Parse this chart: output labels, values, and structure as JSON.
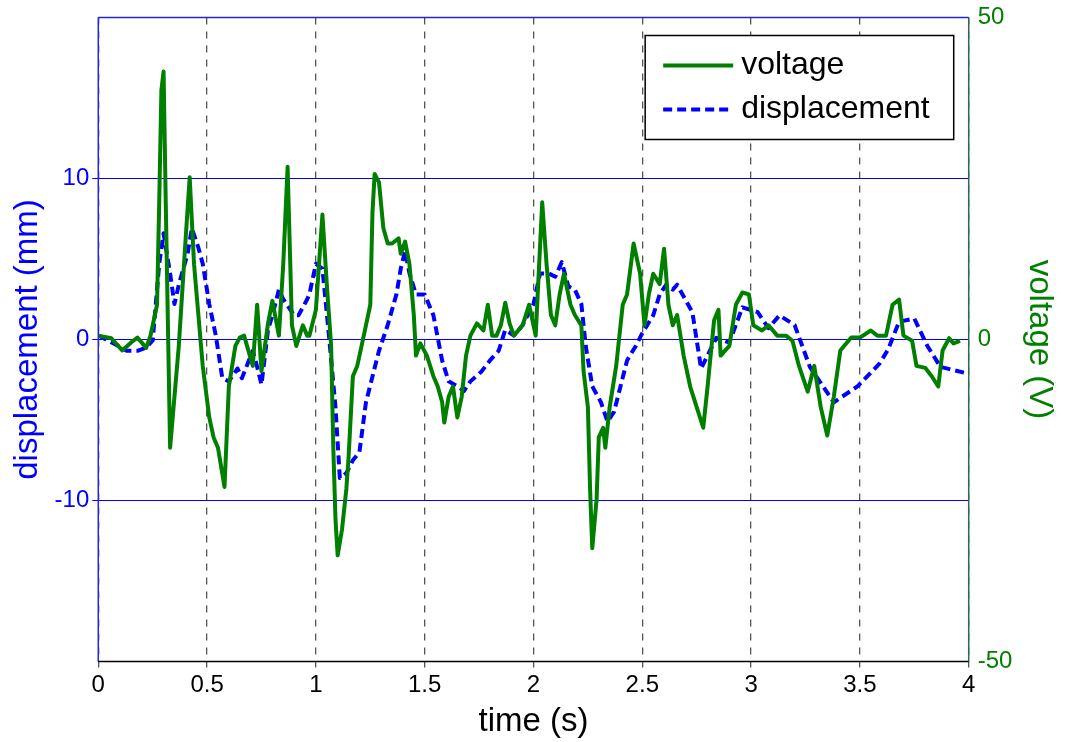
{
  "chart_data": {
    "type": "line",
    "xlabel": "time (s)",
    "ylabel": "displacement (mm)",
    "y2label": "voltage (V)",
    "xlim": [
      0,
      4
    ],
    "xticks": [
      0,
      0.5,
      1,
      1.5,
      2,
      2.5,
      3,
      3.5,
      4
    ],
    "ylim": [
      -20,
      20
    ],
    "yticks": [
      -10,
      0,
      10
    ],
    "y2lim": [
      -50,
      50
    ],
    "y2ticks": [
      -50,
      0,
      50
    ],
    "grid": true,
    "legend": "top right",
    "marker": "none",
    "series": [
      {
        "name": "voltage",
        "color": "#007f00",
        "axis": "y2",
        "line_style": "solid",
        "x": [
          0,
          0.06,
          0.11,
          0.16,
          0.18,
          0.22,
          0.24,
          0.27,
          0.28,
          0.29,
          0.3,
          0.31,
          0.33,
          0.37,
          0.4,
          0.42,
          0.44,
          0.48,
          0.51,
          0.53,
          0.55,
          0.58,
          0.6,
          0.63,
          0.65,
          0.67,
          0.71,
          0.73,
          0.75,
          0.78,
          0.8,
          0.83,
          0.85,
          0.87,
          0.89,
          0.91,
          0.94,
          0.96,
          0.97,
          1.0,
          1.03,
          1.05,
          1.07,
          1.08,
          1.09,
          1.1,
          1.12,
          1.14,
          1.15,
          1.17,
          1.19,
          1.21,
          1.23,
          1.25,
          1.26,
          1.27,
          1.29,
          1.31,
          1.33,
          1.35,
          1.38,
          1.39,
          1.41,
          1.43,
          1.45,
          1.46,
          1.48,
          1.51,
          1.54,
          1.56,
          1.58,
          1.59,
          1.61,
          1.63,
          1.65,
          1.67,
          1.69,
          1.71,
          1.74,
          1.77,
          1.79,
          1.81,
          1.83,
          1.85,
          1.87,
          1.89,
          1.91,
          1.95,
          1.98,
          2.01,
          2.04,
          2.06,
          2.08,
          2.1,
          2.12,
          2.14,
          2.17,
          2.19,
          2.22,
          2.23,
          2.25,
          2.26,
          2.27,
          2.29,
          2.3,
          2.32,
          2.33,
          2.35,
          2.38,
          2.41,
          2.43,
          2.46,
          2.49,
          2.51,
          2.53,
          2.55,
          2.58,
          2.6,
          2.62,
          2.64,
          2.66,
          2.69,
          2.72,
          2.75,
          2.78,
          2.8,
          2.83,
          2.85,
          2.86,
          2.9,
          2.93,
          2.96,
          2.99,
          3.01,
          3.05,
          3.08,
          3.12,
          3.16,
          3.19,
          3.22,
          3.26,
          3.29,
          3.32,
          3.35,
          3.38,
          3.41,
          3.46,
          3.5,
          3.55,
          3.58,
          3.62,
          3.65,
          3.68,
          3.7,
          3.74,
          3.76,
          3.8,
          3.83,
          3.86,
          3.88,
          3.91,
          3.93,
          3.96
        ],
        "values": [
          0.6,
          0.2,
          -1.7,
          -0.2,
          0.3,
          -1.3,
          0.6,
          5.4,
          21.3,
          38.7,
          41.6,
          21.3,
          -16.8,
          -1.0,
          14.9,
          25.2,
          11.7,
          -4.1,
          -12.1,
          -15.2,
          -16.8,
          -22.9,
          -7.3,
          -1.0,
          0.3,
          0.6,
          -4.1,
          5.4,
          -4.9,
          2.5,
          6.0,
          0.6,
          11.7,
          26.8,
          2.2,
          -1.0,
          2.2,
          0.6,
          0.6,
          4.6,
          19.4,
          8.6,
          -1.0,
          -16.8,
          -27.9,
          -33.5,
          -29.5,
          -23.2,
          -18.4,
          -5.7,
          -4.1,
          -1.0,
          2.2,
          5.4,
          19.7,
          25.7,
          24.4,
          17.3,
          14.9,
          14.9,
          15.7,
          13.3,
          15.2,
          11.7,
          3.8,
          -2.5,
          -0.6,
          -2.5,
          -5.7,
          -7.3,
          -9.7,
          -12.9,
          -8.9,
          -7.3,
          -12.1,
          -8.9,
          -2.5,
          0.6,
          2.5,
          1.4,
          5.4,
          0.6,
          0.6,
          2.2,
          5.7,
          2.5,
          0.6,
          2.2,
          5.4,
          0.6,
          21.3,
          11.7,
          3.8,
          2.2,
          7.0,
          10.2,
          5.4,
          3.8,
          2.2,
          -4.9,
          -10.5,
          -23.2,
          -32.4,
          -24.8,
          -15.2,
          -13.7,
          -16.8,
          -10.5,
          -4.1,
          5.4,
          7.0,
          14.9,
          10.2,
          2.2,
          7.0,
          10.2,
          8.6,
          14.1,
          5.4,
          2.2,
          3.8,
          -2.5,
          -7.3,
          -10.5,
          -13.7,
          -7.3,
          3.0,
          4.6,
          -2.5,
          -1.0,
          5.4,
          7.3,
          7.0,
          2.2,
          1.4,
          2.2,
          0.6,
          0.6,
          -0.2,
          -4.1,
          -8.1,
          -4.1,
          -10.5,
          -14.9,
          -8.9,
          -1.7,
          0.3,
          0.3,
          1.4,
          0.6,
          0.6,
          5.4,
          6.2,
          0.6,
          -0.2,
          -4.1,
          -4.4,
          -5.7,
          -7.3,
          -1.7,
          0.2,
          -0.6,
          -0.2
        ]
      },
      {
        "name": "displacement",
        "color": "#0000ff",
        "axis": "y",
        "line_style": "dashed",
        "x": [
          0,
          0.09,
          0.13,
          0.18,
          0.22,
          0.25,
          0.28,
          0.3,
          0.33,
          0.35,
          0.37,
          0.41,
          0.43,
          0.46,
          0.48,
          0.51,
          0.54,
          0.57,
          0.6,
          0.64,
          0.66,
          0.71,
          0.73,
          0.75,
          0.78,
          0.8,
          0.83,
          0.85,
          0.9,
          0.92,
          0.96,
          0.97,
          1.0,
          1.03,
          1.06,
          1.09,
          1.11,
          1.14,
          1.17,
          1.2,
          1.23,
          1.26,
          1.29,
          1.33,
          1.37,
          1.39,
          1.41,
          1.43,
          1.46,
          1.5,
          1.54,
          1.58,
          1.61,
          1.65,
          1.68,
          1.71,
          1.76,
          1.8,
          1.84,
          1.87,
          1.91,
          1.95,
          2.0,
          2.03,
          2.07,
          2.1,
          2.13,
          2.16,
          2.19,
          2.22,
          2.24,
          2.27,
          2.31,
          2.34,
          2.37,
          2.4,
          2.43,
          2.47,
          2.5,
          2.55,
          2.58,
          2.61,
          2.64,
          2.66,
          2.73,
          2.77,
          2.84,
          2.9,
          2.96,
          3.03,
          3.08,
          3.13,
          3.2,
          3.27,
          3.38,
          3.49,
          3.59,
          3.63,
          3.68,
          3.75,
          3.81,
          3.87,
          3.99
        ],
        "values": [
          0.25,
          -0.38,
          -0.7,
          -0.7,
          -0.51,
          -0.06,
          4.7,
          6.6,
          4.1,
          2.2,
          3.4,
          5.3,
          6.9,
          5.7,
          4.7,
          2.2,
          0.25,
          -2.4,
          -2.6,
          -1.8,
          -2.4,
          -0.7,
          -1.7,
          -2.8,
          0.6,
          1.5,
          3.1,
          2.5,
          1.5,
          1.5,
          2.5,
          2.8,
          4.7,
          4.4,
          0.25,
          -4.2,
          -8.6,
          -8.3,
          -7.5,
          -7.0,
          -3.9,
          -2.3,
          -0.7,
          0.9,
          2.8,
          4.4,
          5.5,
          4.1,
          2.8,
          2.8,
          1.5,
          -1.3,
          -2.6,
          -2.9,
          -3.2,
          -2.6,
          -2.0,
          -1.3,
          -0.7,
          0.6,
          0.25,
          0.9,
          2.2,
          4.1,
          4.1,
          3.9,
          4.8,
          3.3,
          3.1,
          2.2,
          -0.4,
          -2.9,
          -3.9,
          -5.1,
          -4.5,
          -2.9,
          -1.3,
          -0.4,
          0.4,
          1.5,
          2.8,
          3.4,
          3.1,
          3.4,
          1.7,
          -1.8,
          0.1,
          -0.2,
          2.0,
          1.7,
          0.7,
          1.5,
          0.9,
          -1.7,
          -3.9,
          -2.9,
          -1.5,
          -0.6,
          1.1,
          1.3,
          -0.4,
          -1.7,
          -2.1
        ]
      }
    ]
  }
}
